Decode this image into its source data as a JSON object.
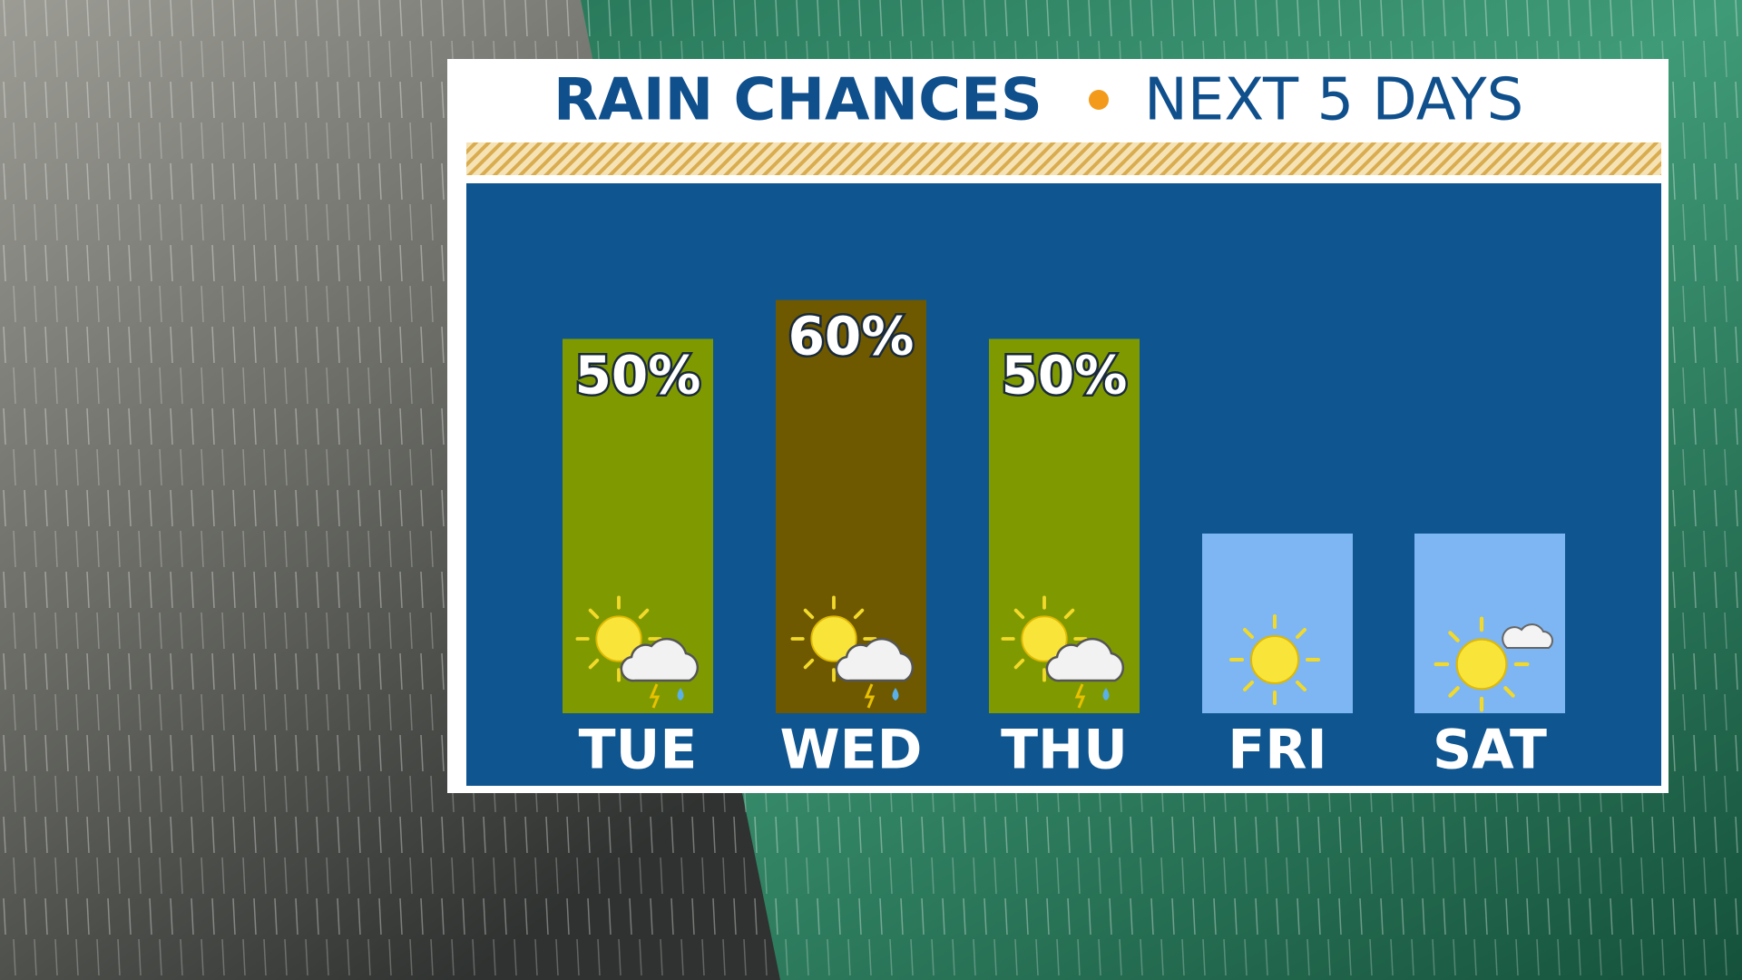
{
  "chart_data": {
    "type": "bar",
    "title": "RAIN CHANCES",
    "subtitle": "NEXT 5 DAYS",
    "categories": [
      "TUE",
      "WED",
      "THU",
      "FRI",
      "SAT"
    ],
    "values": [
      50,
      60,
      50,
      0,
      0
    ],
    "value_labels": [
      "50%",
      "60%",
      "50%",
      null,
      null
    ],
    "colors": [
      "#7f9a00",
      "#6e5800",
      "#7f9a00",
      "#7db6f2",
      "#7db6f2"
    ]
  }
}
